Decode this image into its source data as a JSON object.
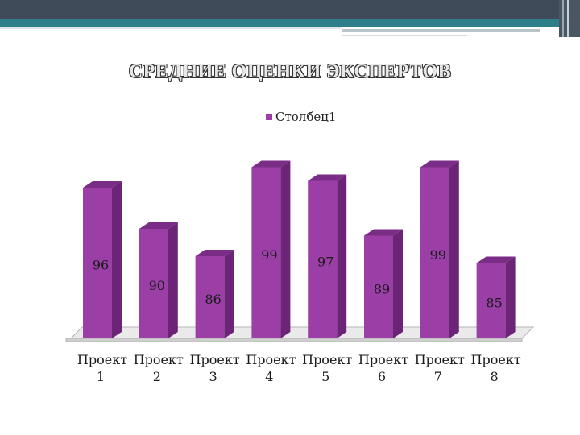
{
  "slide": {
    "title": "СРЕДНИЕ ОЦЕНКИ ЭКСПЕРТОВ"
  },
  "colors": {
    "bar_front": "#9b3fa6",
    "bar_side": "#6c2477",
    "bar_top": "#7a2d86",
    "header": "#3f4b58",
    "accent": "#2f7f8a"
  },
  "chart_data": {
    "type": "bar",
    "title": "",
    "xlabel": "",
    "ylabel": "",
    "categories": [
      "Проект 1",
      "Проект 2",
      "Проект 3",
      "Проект 4",
      "Проект 5",
      "Проект 6",
      "Проект 7",
      "Проект 8"
    ],
    "category_lines": [
      [
        "Проект",
        "1"
      ],
      [
        "Проект",
        "2"
      ],
      [
        "Проект",
        "3"
      ],
      [
        "Проект",
        "4"
      ],
      [
        "Проект",
        "5"
      ],
      [
        "Проект",
        "6"
      ],
      [
        "Проект",
        "7"
      ],
      [
        "Проект",
        "8"
      ]
    ],
    "series": [
      {
        "name": "Столбец1",
        "values": [
          96,
          90,
          86,
          99,
          97,
          89,
          99,
          85
        ]
      }
    ],
    "ylim": [
      74,
      100
    ],
    "grid": false,
    "legend_position": "top",
    "style": "3d-columns"
  }
}
